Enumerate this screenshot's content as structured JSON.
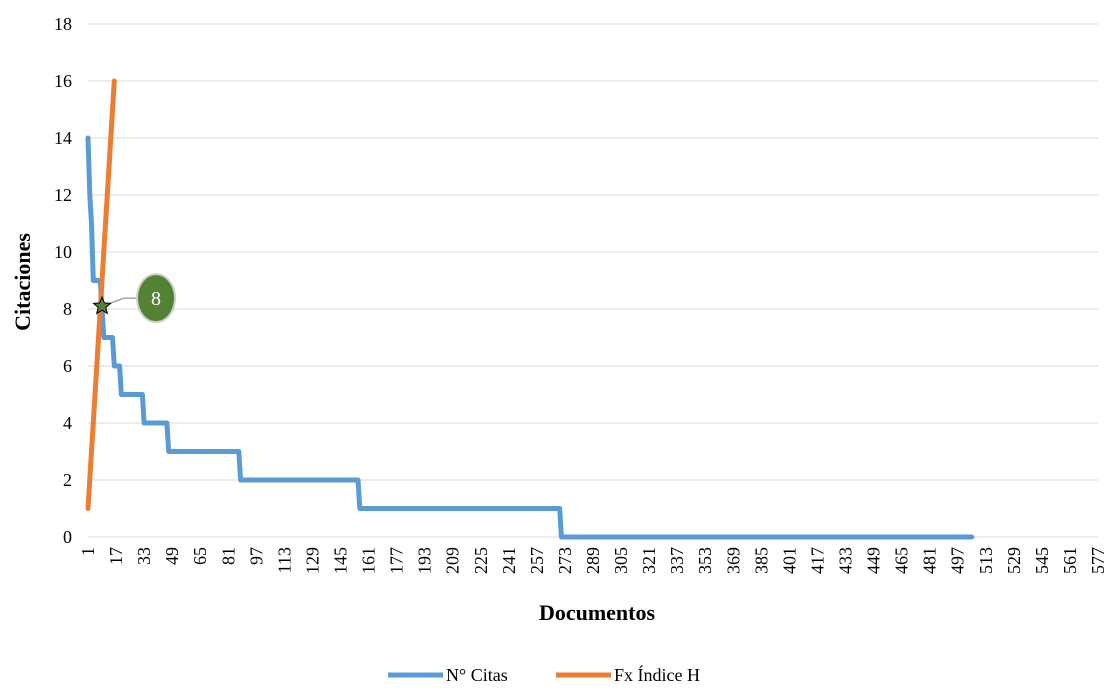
{
  "chart_data": {
    "type": "line",
    "xlabel": "Documentos",
    "ylabel": "Citaciones",
    "ylim": [
      0,
      18
    ],
    "yticks": [
      0,
      2,
      4,
      6,
      8,
      10,
      12,
      14,
      16,
      18
    ],
    "xlim": [
      1,
      577
    ],
    "xticks": [
      1,
      17,
      33,
      49,
      65,
      81,
      97,
      113,
      129,
      145,
      161,
      177,
      193,
      209,
      225,
      241,
      257,
      273,
      289,
      305,
      321,
      337,
      353,
      369,
      385,
      401,
      417,
      433,
      449,
      465,
      481,
      497,
      513,
      529,
      545,
      561,
      577
    ],
    "xtick_labels": [
      "1",
      "17",
      "33",
      "49",
      "65",
      "81",
      "97",
      "113",
      "129",
      "145",
      "161",
      "177",
      "193",
      "209",
      "225",
      "241",
      "257",
      "273",
      "289",
      "305",
      "321",
      "337",
      "353",
      "369",
      "385",
      "401",
      "417",
      "433",
      "449",
      "465",
      "481",
      "497",
      "513",
      "529",
      "545",
      "561",
      "577"
    ],
    "grid": true,
    "legend_position": "bottom",
    "series": [
      {
        "name": "N° Citas",
        "color": "#5b9bd5",
        "points": [
          [
            1,
            14
          ],
          [
            2,
            12
          ],
          [
            3,
            11
          ],
          [
            4,
            9
          ],
          [
            8,
            9
          ],
          [
            9,
            8
          ],
          [
            10,
            7
          ],
          [
            15,
            7
          ],
          [
            16,
            6
          ],
          [
            19,
            6
          ],
          [
            20,
            5
          ],
          [
            32,
            5
          ],
          [
            33,
            4
          ],
          [
            46,
            4
          ],
          [
            47,
            3
          ],
          [
            87,
            3
          ],
          [
            88,
            2
          ],
          [
            155,
            2
          ],
          [
            156,
            1
          ],
          [
            270,
            1
          ],
          [
            271,
            0
          ],
          [
            505,
            0
          ]
        ]
      },
      {
        "name": "Fx Índice H",
        "color": "#ed7d31",
        "points": [
          [
            1,
            1
          ],
          [
            16,
            16
          ]
        ]
      }
    ],
    "annotations": [
      {
        "label": "8",
        "x": 9,
        "y": 8.1,
        "marker": "star",
        "color": "#548235"
      }
    ]
  }
}
